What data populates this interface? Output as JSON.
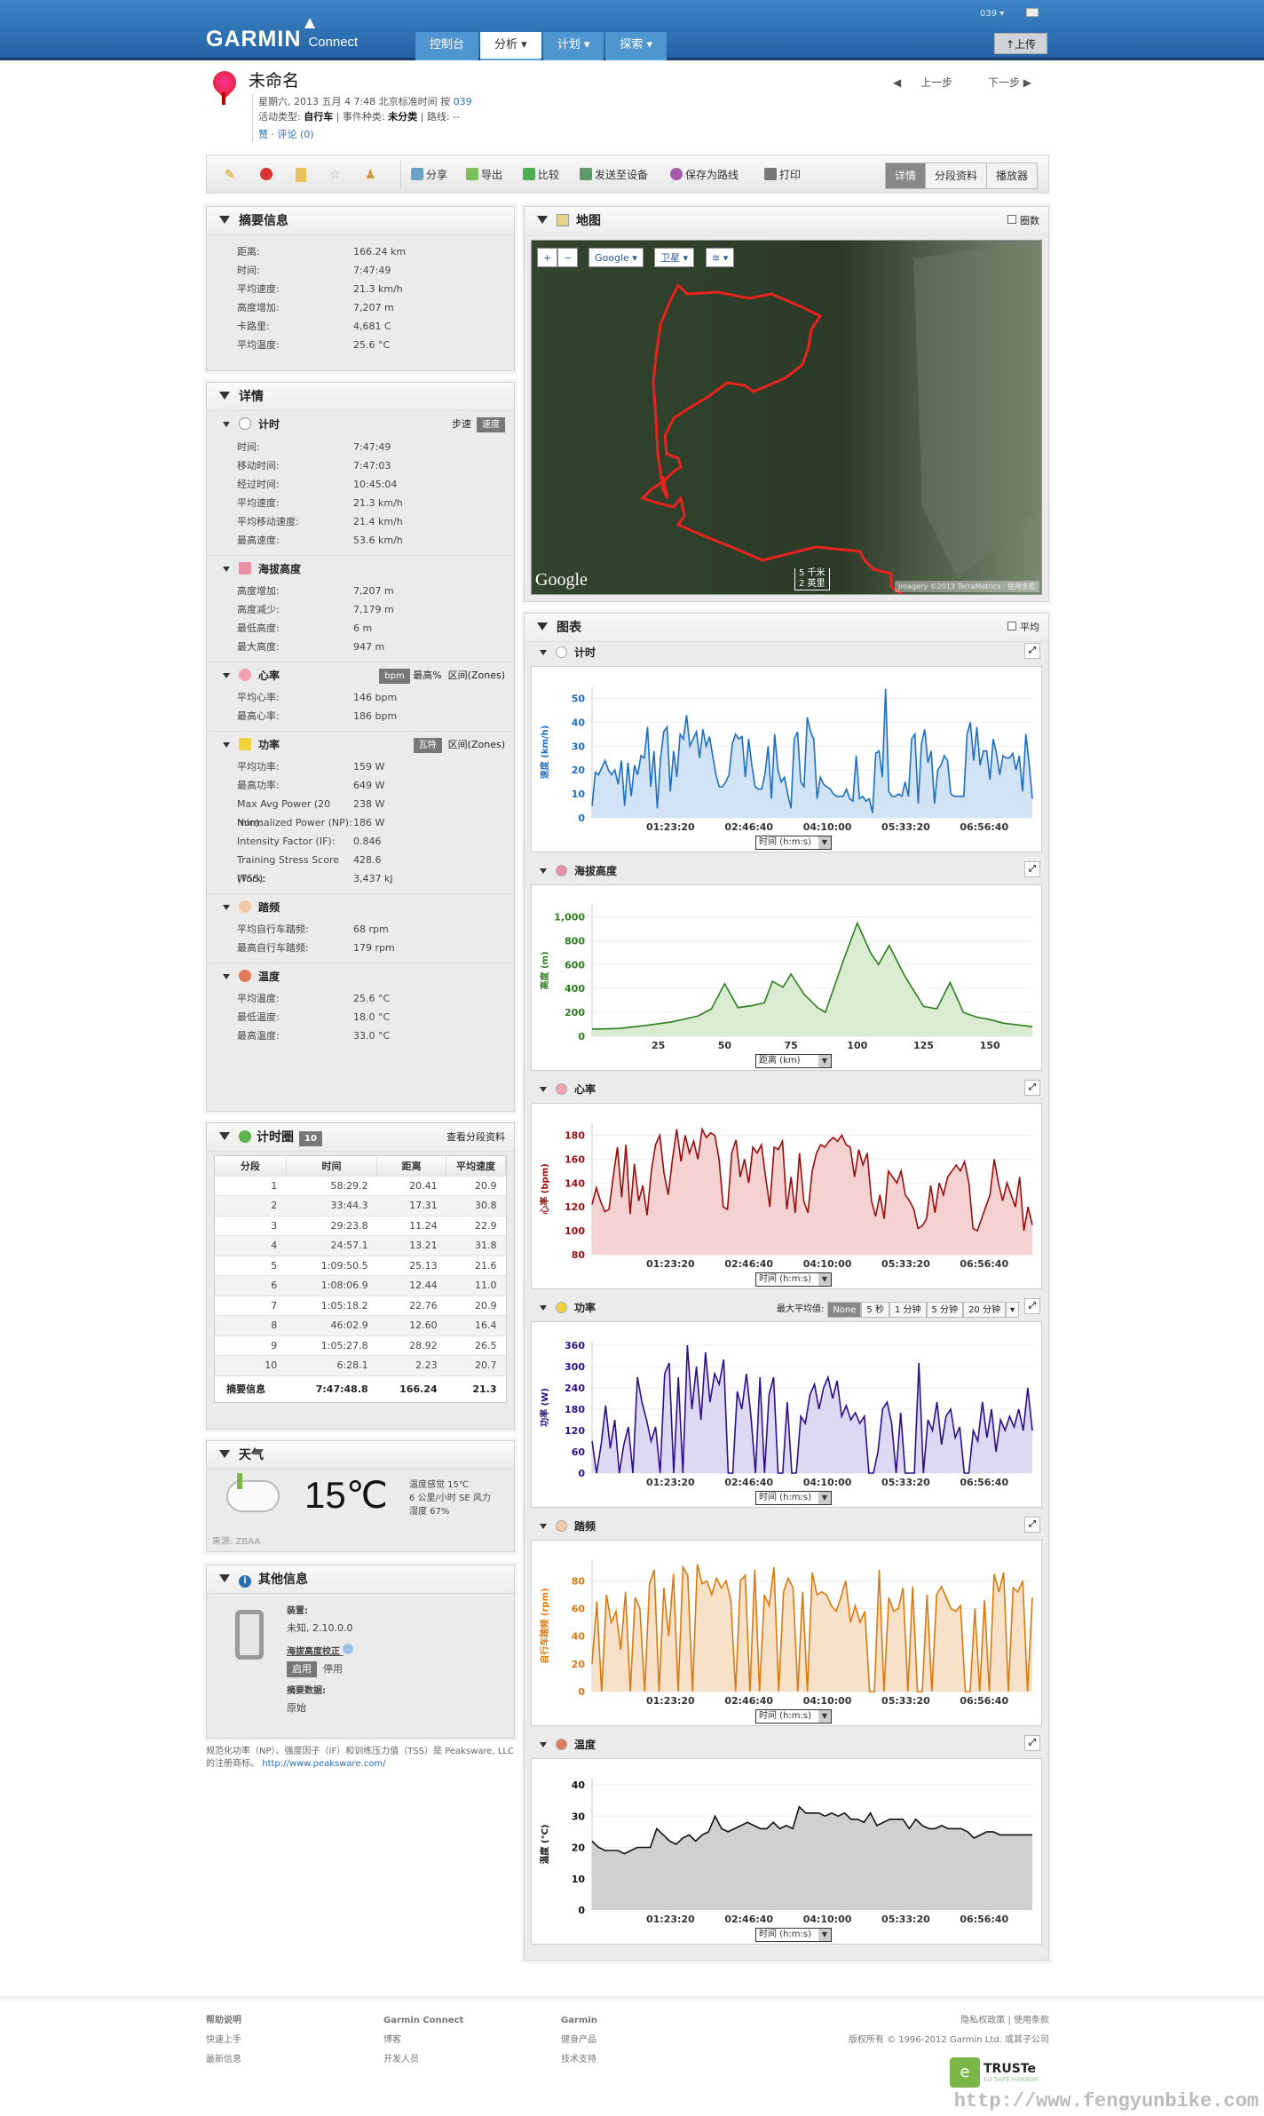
{
  "header": {
    "logo": "GARMIN",
    "logo_sub": "Connect",
    "nav": [
      {
        "label": "控制台"
      },
      {
        "label": "分析 ▾",
        "active": true
      },
      {
        "label": "计划 ▾"
      },
      {
        "label": "探索 ▾"
      }
    ],
    "user": "039 ▾",
    "upload_label": "↑上传"
  },
  "activity": {
    "title": "未命名",
    "date_line": "星期六, 2013 五月 4 7:48 北京标准时间 按",
    "owner": "039",
    "type_label": "活动类型:",
    "type_value": "自行车",
    "event_label": "| 事件种类:",
    "event_value": "未分类",
    "route_label": "| 路线: --",
    "like": "赞",
    "comments": "· 评论 (0)",
    "prev": "上一步",
    "next": "下一步"
  },
  "toolbar": {
    "share": "分享",
    "export": "导出",
    "compare": "比较",
    "send": "发送至设备",
    "save_course": "保存为路线",
    "print": "打印",
    "tabs": [
      "详情",
      "分段资料",
      "播放器"
    ]
  },
  "summary": {
    "title": "摘要信息",
    "rows": [
      {
        "k": "距离:",
        "v": "166.24 km"
      },
      {
        "k": "时间:",
        "v": "7:47:49"
      },
      {
        "k": "平均速度:",
        "v": "21.3 km/h"
      },
      {
        "k": "高度增加:",
        "v": "7,207 m"
      },
      {
        "k": "卡路里:",
        "v": "4,681 C"
      },
      {
        "k": "平均温度:",
        "v": "25.6 °C"
      }
    ]
  },
  "details": {
    "title": "详情",
    "timing": {
      "title": "计时",
      "opt1": "步速",
      "opt2": "速度",
      "rows": [
        {
          "k": "时间:",
          "v": "7:47:49"
        },
        {
          "k": "移动时间:",
          "v": "7:47:03"
        },
        {
          "k": "经过时间:",
          "v": "10:45:04"
        },
        {
          "k": "平均速度:",
          "v": "21.3 km/h"
        },
        {
          "k": "平均移动速度:",
          "v": "21.4 km/h"
        },
        {
          "k": "最高速度:",
          "v": "53.6 km/h"
        }
      ]
    },
    "elevation": {
      "title": "海拔高度",
      "rows": [
        {
          "k": "高度增加:",
          "v": "7,207 m"
        },
        {
          "k": "高度减少:",
          "v": "7,179 m"
        },
        {
          "k": "最低高度:",
          "v": "6 m"
        },
        {
          "k": "最大高度:",
          "v": "947 m"
        }
      ]
    },
    "hr": {
      "title": "心率",
      "opt1": "bpm",
      "opt2": "最高%",
      "opt3": "区间(Zones)",
      "rows": [
        {
          "k": "平均心率:",
          "v": "146 bpm"
        },
        {
          "k": "最高心率:",
          "v": "186 bpm"
        }
      ]
    },
    "power": {
      "title": "功率",
      "opt1": "瓦特",
      "opt2": "区间(Zones)",
      "rows": [
        {
          "k": "平均功率:",
          "v": "159 W"
        },
        {
          "k": "最高功率:",
          "v": "649 W"
        },
        {
          "k": "Max Avg Power (20 min):",
          "v": "238 W"
        },
        {
          "k": "Normalized Power (NP):",
          "v": "186 W"
        },
        {
          "k": "Intensity Factor (IF):",
          "v": "0.846"
        },
        {
          "k": "Training Stress Score (TSS):",
          "v": "428.6"
        },
        {
          "k": "Work:",
          "v": "3,437 kJ"
        }
      ]
    },
    "cadence": {
      "title": "踏频",
      "rows": [
        {
          "k": "平均自行车踏频:",
          "v": "68 rpm"
        },
        {
          "k": "最高自行车踏频:",
          "v": "179 rpm"
        }
      ]
    },
    "temp": {
      "title": "温度",
      "rows": [
        {
          "k": "平均温度:",
          "v": "25.6 °C"
        },
        {
          "k": "最低温度:",
          "v": "18.0 °C"
        },
        {
          "k": "最高温度:",
          "v": "33.0 °C"
        }
      ]
    }
  },
  "laps": {
    "title": "计时圈",
    "count": "10",
    "view_link": "查看分段资料",
    "headers": [
      "分段",
      "时间",
      "距离",
      "平均速度"
    ],
    "rows": [
      [
        "1",
        "58:29.2",
        "20.41",
        "20.9"
      ],
      [
        "2",
        "33:44.3",
        "17.31",
        "30.8"
      ],
      [
        "3",
        "29:23.8",
        "11.24",
        "22.9"
      ],
      [
        "4",
        "24:57.1",
        "13.21",
        "31.8"
      ],
      [
        "5",
        "1:09:50.5",
        "25.13",
        "21.6"
      ],
      [
        "6",
        "1:08:06.9",
        "12.44",
        "11.0"
      ],
      [
        "7",
        "1:05:18.2",
        "22.76",
        "20.9"
      ],
      [
        "8",
        "46:02.9",
        "12.60",
        "16.4"
      ],
      [
        "9",
        "1:05:27.8",
        "28.92",
        "26.5"
      ],
      [
        "10",
        "6:28.1",
        "2.23",
        "20.7"
      ]
    ],
    "total": [
      "摘要信息",
      "7:47:48.8",
      "166.24",
      "21.3"
    ]
  },
  "weather": {
    "title": "天气",
    "temp": "15℃",
    "feels": "温度感觉 15℃",
    "wind": "6 公里/小时 SE 风力",
    "humidity": "湿度 67%",
    "source": "来源: ZBAA"
  },
  "other": {
    "title": "其他信息",
    "device_label": "装置:",
    "device_value": "未知, 2.10.0.0",
    "elev_corr_label": "海拔高度校正",
    "enable": "启用",
    "disable": "停用",
    "data_label": "摘要数据:",
    "data_value": "原始"
  },
  "disclaimer": {
    "text": "规范化功率（NP）、强度因子（IF）和训练压力值（TSS）是 Peaksware, LLC的注册商标。",
    "link": "http://www.peaksware.com/"
  },
  "map": {
    "title": "地图",
    "laps_checkbox": "圈数",
    "zoom_in": "+",
    "zoom_out": "−",
    "provider": "Google ▾",
    "maptype": "卫星 ▾",
    "layers": "≋ ▾",
    "logo": "Google",
    "scale_km": "5 千米",
    "scale_mi": "2 英里",
    "attribution": "Imagery ©2013 TerraMetrics · 使用条款"
  },
  "charts_section": {
    "title": "图表",
    "avg_checkbox": "平均",
    "time_selector": "时间 (h:m:s)",
    "dist_selector": "距离 (km)",
    "power_max_avg_label": "最大平均值:",
    "power_opts": [
      "None",
      "5 秒",
      "1 分钟",
      "5 分钟",
      "20 分钟"
    ]
  },
  "chart_data": [
    {
      "type": "area",
      "title": "计时",
      "ylabel": "速度 (km/h)",
      "xlabel": "时间 (h:m:s)",
      "color": "#1f6fc0",
      "fill": "#c9def3",
      "ylim": [
        0,
        55
      ],
      "yticks": [
        0,
        10,
        20,
        30,
        40,
        50
      ],
      "xticks": [
        "01:23:20",
        "02:46:40",
        "04:10:00",
        "05:33:20",
        "06:56:40"
      ],
      "values": [
        5,
        19,
        18,
        21,
        24,
        20,
        18,
        20,
        14,
        24,
        5,
        23,
        9,
        22,
        18,
        26,
        25,
        38,
        13,
        28,
        4,
        25,
        36,
        38,
        11,
        28,
        17,
        35,
        33,
        43,
        30,
        33,
        36,
        25,
        37,
        30,
        34,
        26,
        18,
        13,
        13,
        15,
        18,
        31,
        35,
        33,
        34,
        17,
        33,
        22,
        13,
        12,
        12,
        18,
        30,
        8,
        35,
        20,
        15,
        17,
        10,
        4,
        33,
        36,
        15,
        13,
        42,
        36,
        33,
        8,
        17,
        14,
        13,
        12,
        10,
        9,
        9,
        9,
        12,
        8,
        7,
        26,
        8,
        9,
        7,
        8,
        2,
        27,
        28,
        17,
        54,
        11,
        9,
        9,
        10,
        9,
        15,
        9,
        33,
        35,
        6,
        31,
        37,
        23,
        28,
        6,
        20,
        22,
        26,
        24,
        10,
        9,
        9,
        9,
        9,
        35,
        40,
        24,
        38,
        22,
        28,
        28,
        16,
        33,
        27,
        18,
        26,
        25,
        25,
        27,
        20,
        26,
        11,
        35,
        23,
        8
      ]
    },
    {
      "type": "area",
      "title": "海拔高度",
      "ylabel": "高度 (m)",
      "xlabel": "距离 (km)",
      "color": "#2e7d1f",
      "fill": "#d2e8c8",
      "ylim": [
        0,
        1100
      ],
      "yticks": [
        0,
        200,
        400,
        600,
        800,
        1000
      ],
      "xticks": [
        "25",
        "50",
        "75",
        "100",
        "125",
        "150"
      ],
      "x_km": [
        0,
        10,
        20,
        30,
        40,
        45,
        50,
        55,
        60,
        65,
        68,
        72,
        75,
        80,
        85,
        88,
        95,
        100,
        105,
        108,
        112,
        118,
        125,
        130,
        135,
        140,
        145,
        150,
        155,
        166
      ],
      "values": [
        60,
        65,
        90,
        120,
        170,
        230,
        440,
        240,
        255,
        280,
        460,
        410,
        520,
        350,
        240,
        200,
        650,
        947,
        700,
        600,
        760,
        500,
        250,
        230,
        450,
        200,
        160,
        140,
        110,
        80
      ]
    },
    {
      "type": "area",
      "title": "心率",
      "ylabel": "心率 (bpm)",
      "xlabel": "时间 (h:m:s)",
      "color": "#9a0d0d",
      "fill": "#f2caca",
      "ylim": [
        80,
        190
      ],
      "yticks": [
        80,
        100,
        120,
        140,
        160,
        180
      ],
      "xticks": [
        "01:23:20",
        "02:46:40",
        "04:10:00",
        "05:33:20",
        "06:56:40"
      ],
      "values": [
        122,
        136,
        125,
        116,
        118,
        145,
        170,
        128,
        172,
        114,
        156,
        125,
        138,
        113,
        150,
        172,
        180,
        148,
        130,
        160,
        185,
        158,
        180,
        165,
        175,
        160,
        185,
        178,
        182,
        180,
        160,
        120,
        118,
        165,
        176,
        145,
        160,
        140,
        170,
        165,
        172,
        145,
        120,
        170,
        168,
        175,
        118,
        145,
        115,
        165,
        125,
        115,
        150,
        165,
        172,
        170,
        175,
        178,
        175,
        180,
        172,
        170,
        145,
        168,
        155,
        165,
        125,
        112,
        130,
        110,
        150,
        145,
        140,
        150,
        130,
        125,
        118,
        102,
        104,
        110,
        138,
        115,
        140,
        130,
        145,
        150,
        155,
        150,
        158,
        140,
        102,
        100,
        110,
        120,
        130,
        160,
        140,
        125,
        140,
        130,
        120,
        145,
        100,
        120,
        105
      ]
    },
    {
      "type": "area",
      "title": "功率",
      "ylabel": "功率 (W)",
      "xlabel": "时间 (h:m:s)",
      "color": "#2d0f8c",
      "fill": "#d8d2f0",
      "ylim": [
        0,
        370
      ],
      "yticks": [
        0,
        60,
        120,
        180,
        240,
        300,
        360
      ],
      "xticks": [
        "01:23:20",
        "02:46:40",
        "04:10:00",
        "05:33:20",
        "06:56:40"
      ],
      "values": [
        90,
        0,
        80,
        190,
        70,
        150,
        0,
        80,
        130,
        0,
        270,
        200,
        150,
        90,
        130,
        0,
        280,
        310,
        0,
        270,
        0,
        360,
        180,
        300,
        150,
        340,
        200,
        280,
        250,
        320,
        0,
        0,
        230,
        180,
        280,
        160,
        0,
        270,
        0,
        220,
        270,
        0,
        0,
        200,
        0,
        0,
        160,
        140,
        220,
        250,
        180,
        240,
        270,
        210,
        260,
        160,
        190,
        150,
        170,
        140,
        160,
        0,
        0,
        60,
        180,
        200,
        140,
        0,
        170,
        0,
        0,
        0,
        310,
        0,
        150,
        120,
        200,
        80,
        160,
        180,
        100,
        130,
        0,
        0,
        120,
        90,
        200,
        100,
        180,
        60,
        150,
        120,
        160,
        130,
        180,
        120,
        240,
        120
      ]
    },
    {
      "type": "area",
      "title": "踏频",
      "ylabel": "自行车踏频 (rpm)",
      "xlabel": "时间 (h:m:s)",
      "color": "#d97a10",
      "fill": "#f6dcc0",
      "ylim": [
        0,
        95
      ],
      "yticks": [
        0,
        20,
        40,
        60,
        80
      ],
      "xticks": [
        "01:23:20",
        "02:46:40",
        "04:10:00",
        "05:33:20",
        "06:56:40"
      ],
      "values": [
        20,
        65,
        0,
        70,
        50,
        58,
        30,
        72,
        0,
        68,
        60,
        0,
        78,
        88,
        0,
        75,
        40,
        85,
        0,
        90,
        84,
        0,
        92,
        78,
        80,
        70,
        82,
        75,
        80,
        66,
        0,
        80,
        84,
        0,
        88,
        0,
        70,
        62,
        90,
        0,
        72,
        82,
        75,
        0,
        72,
        0,
        86,
        70,
        72,
        70,
        62,
        58,
        68,
        80,
        50,
        62,
        50,
        58,
        0,
        0,
        88,
        0,
        68,
        58,
        60,
        75,
        0,
        76,
        0,
        0,
        70,
        0,
        70,
        76,
        68,
        60,
        58,
        62,
        0,
        0,
        60,
        0,
        66,
        0,
        85,
        72,
        86,
        0,
        75,
        72,
        80,
        0,
        68
      ]
    },
    {
      "type": "area",
      "title": "温度",
      "ylabel": "温度 (°C)",
      "xlabel": "时间 (h:m:s)",
      "color": "#111111",
      "fill": "#c8c8c8",
      "ylim": [
        0,
        42
      ],
      "yticks": [
        0,
        10,
        20,
        30,
        40
      ],
      "xticks": [
        "01:23:20",
        "02:46:40",
        "04:10:00",
        "05:33:20",
        "06:56:40"
      ],
      "values": [
        22,
        20,
        19,
        19,
        19,
        18,
        19,
        20,
        20,
        20,
        26,
        24,
        22,
        21,
        23,
        24,
        22,
        24,
        25,
        30,
        26,
        25,
        26,
        27,
        28,
        27,
        26,
        26,
        28,
        26,
        27,
        26,
        33,
        31,
        31,
        31,
        30,
        31,
        30,
        31,
        29,
        29,
        28,
        31,
        27,
        28,
        29,
        29,
        29,
        26,
        29,
        27,
        26,
        26,
        27,
        26,
        26,
        26,
        25,
        23,
        24,
        25,
        25,
        24,
        24,
        24,
        24,
        24,
        24
      ]
    }
  ],
  "footer": {
    "col1": [
      "帮助说明",
      "快速上手",
      "最新信息"
    ],
    "col2": [
      "Garmin Connect",
      "博客",
      "开发人员"
    ],
    "col3": [
      "Garmin",
      "健身产品",
      "技术支持"
    ],
    "legal": "隐私权政策 | 使用条款",
    "copyright": "版权所有 © 1996-2012 Garmin Ltd. 或其子公司",
    "truste": "TRUSTe",
    "truste_sub": "EU SAFE HARBOR",
    "watermark": "http://www.fengyunbike.com"
  }
}
